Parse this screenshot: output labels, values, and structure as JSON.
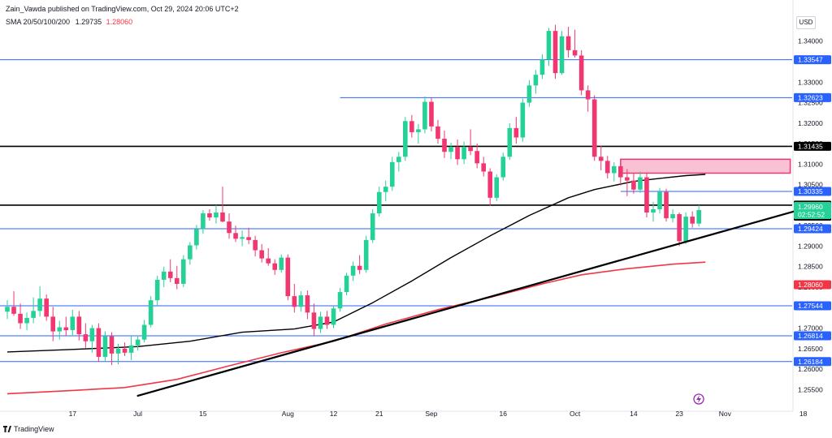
{
  "header": {
    "publisher": "Zain_Vawda published on TradingView.com, Oct 29, 2024 20:06 UTC+2",
    "indicator_label": "SMA 20/50/100/200",
    "sma100_value": "1.29735",
    "sma200_value": "1.28060"
  },
  "currency": "USD",
  "branding": "TradingView",
  "colors": {
    "up": "#26d198",
    "down": "#f23670",
    "blue_line": "#2962ff",
    "black_line": "#000000",
    "sma200": "#f23645",
    "sma100": "#000000",
    "zone_fill": "#f9c2d4",
    "zone_border": "#f23670"
  },
  "chart_data": {
    "type": "candlestick",
    "ylim": [
      1.2525,
      1.3445
    ],
    "y_ticks": [
      "1.34000",
      "1.33500",
      "1.33000",
      "1.32500",
      "1.32000",
      "1.31500",
      "1.31000",
      "1.30500",
      "1.30000",
      "1.29500",
      "1.29000",
      "1.28500",
      "1.28000",
      "1.27500",
      "1.27000",
      "1.26500",
      "1.26000",
      "1.25500"
    ],
    "x_ticks": [
      {
        "label": "17",
        "index": 10
      },
      {
        "label": "Jul",
        "index": 20
      },
      {
        "label": "15",
        "index": 30
      },
      {
        "label": "Aug",
        "index": 43
      },
      {
        "label": "12",
        "index": 50
      },
      {
        "label": "21",
        "index": 57
      },
      {
        "label": "Sep",
        "index": 65
      },
      {
        "label": "16",
        "index": 76
      },
      {
        "label": "Oct",
        "index": 87
      },
      {
        "label": "14",
        "index": 96
      },
      {
        "label": "23",
        "index": 103
      },
      {
        "label": "Nov",
        "index": 110
      },
      {
        "label": "18",
        "index": 122
      }
    ],
    "candles": [
      {
        "o": 1.274,
        "h": 1.2768,
        "l": 1.2722,
        "c": 1.2752
      },
      {
        "o": 1.2752,
        "h": 1.279,
        "l": 1.273,
        "c": 1.2735
      },
      {
        "o": 1.2735,
        "h": 1.276,
        "l": 1.2698,
        "c": 1.2712
      },
      {
        "o": 1.2712,
        "h": 1.2738,
        "l": 1.2695,
        "c": 1.2725
      },
      {
        "o": 1.2725,
        "h": 1.2775,
        "l": 1.2712,
        "c": 1.2742
      },
      {
        "o": 1.2742,
        "h": 1.2802,
        "l": 1.2728,
        "c": 1.2772
      },
      {
        "o": 1.2772,
        "h": 1.2782,
        "l": 1.2718,
        "c": 1.2728
      },
      {
        "o": 1.2728,
        "h": 1.2752,
        "l": 1.2668,
        "c": 1.2692
      },
      {
        "o": 1.2692,
        "h": 1.2718,
        "l": 1.2672,
        "c": 1.2702
      },
      {
        "o": 1.2702,
        "h": 1.2728,
        "l": 1.2682,
        "c": 1.2695
      },
      {
        "o": 1.2695,
        "h": 1.2745,
        "l": 1.268,
        "c": 1.2728
      },
      {
        "o": 1.2728,
        "h": 1.2742,
        "l": 1.267,
        "c": 1.2685
      },
      {
        "o": 1.2685,
        "h": 1.2712,
        "l": 1.2652,
        "c": 1.2668
      },
      {
        "o": 1.2668,
        "h": 1.2708,
        "l": 1.264,
        "c": 1.27
      },
      {
        "o": 1.27,
        "h": 1.2712,
        "l": 1.2618,
        "c": 1.263
      },
      {
        "o": 1.263,
        "h": 1.2692,
        "l": 1.2618,
        "c": 1.268
      },
      {
        "o": 1.268,
        "h": 1.269,
        "l": 1.261,
        "c": 1.2638
      },
      {
        "o": 1.2638,
        "h": 1.2662,
        "l": 1.2612,
        "c": 1.265
      },
      {
        "o": 1.265,
        "h": 1.2665,
        "l": 1.2632,
        "c": 1.264
      },
      {
        "o": 1.264,
        "h": 1.268,
        "l": 1.2622,
        "c": 1.2658
      },
      {
        "o": 1.2658,
        "h": 1.2682,
        "l": 1.2645,
        "c": 1.2672
      },
      {
        "o": 1.2672,
        "h": 1.272,
        "l": 1.2665,
        "c": 1.2708
      },
      {
        "o": 1.2708,
        "h": 1.2778,
        "l": 1.2702,
        "c": 1.2768
      },
      {
        "o": 1.2768,
        "h": 1.2828,
        "l": 1.2755,
        "c": 1.2818
      },
      {
        "o": 1.2818,
        "h": 1.285,
        "l": 1.28,
        "c": 1.2838
      },
      {
        "o": 1.2838,
        "h": 1.2868,
        "l": 1.2812,
        "c": 1.2822
      },
      {
        "o": 1.2822,
        "h": 1.2852,
        "l": 1.2795,
        "c": 1.2808
      },
      {
        "o": 1.2808,
        "h": 1.2878,
        "l": 1.28,
        "c": 1.2868
      },
      {
        "o": 1.2868,
        "h": 1.291,
        "l": 1.2855,
        "c": 1.2902
      },
      {
        "o": 1.2902,
        "h": 1.2952,
        "l": 1.2892,
        "c": 1.2942
      },
      {
        "o": 1.2942,
        "h": 1.2988,
        "l": 1.293,
        "c": 1.298
      },
      {
        "o": 1.298,
        "h": 1.299,
        "l": 1.2962,
        "c": 1.297
      },
      {
        "o": 1.297,
        "h": 1.3,
        "l": 1.2955,
        "c": 1.2982
      },
      {
        "o": 1.2982,
        "h": 1.3045,
        "l": 1.2958,
        "c": 1.296
      },
      {
        "o": 1.296,
        "h": 1.298,
        "l": 1.2918,
        "c": 1.2932
      },
      {
        "o": 1.2932,
        "h": 1.295,
        "l": 1.291,
        "c": 1.2918
      },
      {
        "o": 1.2918,
        "h": 1.2938,
        "l": 1.29,
        "c": 1.2922
      },
      {
        "o": 1.2922,
        "h": 1.2945,
        "l": 1.2905,
        "c": 1.2915
      },
      {
        "o": 1.2915,
        "h": 1.2925,
        "l": 1.2875,
        "c": 1.289
      },
      {
        "o": 1.289,
        "h": 1.2905,
        "l": 1.286,
        "c": 1.287
      },
      {
        "o": 1.287,
        "h": 1.2895,
        "l": 1.2852,
        "c": 1.2858
      },
      {
        "o": 1.2858,
        "h": 1.2868,
        "l": 1.283,
        "c": 1.2842
      },
      {
        "o": 1.2842,
        "h": 1.288,
        "l": 1.2835,
        "c": 1.2872
      },
      {
        "o": 1.2872,
        "h": 1.288,
        "l": 1.2768,
        "c": 1.2778
      },
      {
        "o": 1.2778,
        "h": 1.2808,
        "l": 1.2738,
        "c": 1.2752
      },
      {
        "o": 1.2752,
        "h": 1.279,
        "l": 1.274,
        "c": 1.278
      },
      {
        "o": 1.278,
        "h": 1.2792,
        "l": 1.2722,
        "c": 1.2738
      },
      {
        "o": 1.2738,
        "h": 1.276,
        "l": 1.2682,
        "c": 1.2698
      },
      {
        "o": 1.2698,
        "h": 1.274,
        "l": 1.2688,
        "c": 1.2728
      },
      {
        "o": 1.2728,
        "h": 1.2742,
        "l": 1.2698,
        "c": 1.2708
      },
      {
        "o": 1.2708,
        "h": 1.2755,
        "l": 1.27,
        "c": 1.2748
      },
      {
        "o": 1.2748,
        "h": 1.2798,
        "l": 1.274,
        "c": 1.2788
      },
      {
        "o": 1.2788,
        "h": 1.2835,
        "l": 1.278,
        "c": 1.2828
      },
      {
        "o": 1.2828,
        "h": 1.2862,
        "l": 1.2815,
        "c": 1.2852
      },
      {
        "o": 1.2852,
        "h": 1.2878,
        "l": 1.2832,
        "c": 1.2842
      },
      {
        "o": 1.2842,
        "h": 1.2925,
        "l": 1.2835,
        "c": 1.2915
      },
      {
        "o": 1.2915,
        "h": 1.299,
        "l": 1.2908,
        "c": 1.298
      },
      {
        "o": 1.298,
        "h": 1.3045,
        "l": 1.2972,
        "c": 1.3032
      },
      {
        "o": 1.3032,
        "h": 1.306,
        "l": 1.301,
        "c": 1.3045
      },
      {
        "o": 1.3045,
        "h": 1.3118,
        "l": 1.3035,
        "c": 1.3105
      },
      {
        "o": 1.3105,
        "h": 1.313,
        "l": 1.3082,
        "c": 1.3118
      },
      {
        "o": 1.3118,
        "h": 1.3215,
        "l": 1.3108,
        "c": 1.3205
      },
      {
        "o": 1.3205,
        "h": 1.322,
        "l": 1.3165,
        "c": 1.3178
      },
      {
        "o": 1.3178,
        "h": 1.3198,
        "l": 1.315,
        "c": 1.3185
      },
      {
        "o": 1.3185,
        "h": 1.3265,
        "l": 1.3175,
        "c": 1.3252
      },
      {
        "o": 1.3252,
        "h": 1.3262,
        "l": 1.318,
        "c": 1.3192
      },
      {
        "o": 1.3192,
        "h": 1.3208,
        "l": 1.315,
        "c": 1.3162
      },
      {
        "o": 1.3162,
        "h": 1.3182,
        "l": 1.3115,
        "c": 1.313
      },
      {
        "o": 1.313,
        "h": 1.3152,
        "l": 1.3112,
        "c": 1.3142
      },
      {
        "o": 1.3142,
        "h": 1.316,
        "l": 1.3098,
        "c": 1.3112
      },
      {
        "o": 1.3112,
        "h": 1.3155,
        "l": 1.31,
        "c": 1.3142
      },
      {
        "o": 1.3142,
        "h": 1.3185,
        "l": 1.3122,
        "c": 1.3132
      },
      {
        "o": 1.3132,
        "h": 1.315,
        "l": 1.309,
        "c": 1.3102
      },
      {
        "o": 1.3102,
        "h": 1.3118,
        "l": 1.307,
        "c": 1.3082
      },
      {
        "o": 1.3082,
        "h": 1.309,
        "l": 1.2998,
        "c": 1.3018
      },
      {
        "o": 1.3018,
        "h": 1.3075,
        "l": 1.301,
        "c": 1.3068
      },
      {
        "o": 1.3068,
        "h": 1.3128,
        "l": 1.306,
        "c": 1.3118
      },
      {
        "o": 1.3118,
        "h": 1.32,
        "l": 1.311,
        "c": 1.3188
      },
      {
        "o": 1.3188,
        "h": 1.3215,
        "l": 1.315,
        "c": 1.3165
      },
      {
        "o": 1.3165,
        "h": 1.326,
        "l": 1.3155,
        "c": 1.325
      },
      {
        "o": 1.325,
        "h": 1.3305,
        "l": 1.324,
        "c": 1.3292
      },
      {
        "o": 1.3292,
        "h": 1.333,
        "l": 1.3272,
        "c": 1.3318
      },
      {
        "o": 1.3318,
        "h": 1.3368,
        "l": 1.3308,
        "c": 1.3355
      },
      {
        "o": 1.3355,
        "h": 1.3432,
        "l": 1.334,
        "c": 1.3425
      },
      {
        "o": 1.3425,
        "h": 1.344,
        "l": 1.3308,
        "c": 1.3322
      },
      {
        "o": 1.3322,
        "h": 1.3425,
        "l": 1.3318,
        "c": 1.3412
      },
      {
        "o": 1.3412,
        "h": 1.3435,
        "l": 1.336,
        "c": 1.3378
      },
      {
        "o": 1.3378,
        "h": 1.3428,
        "l": 1.336,
        "c": 1.3365
      },
      {
        "o": 1.3365,
        "h": 1.3378,
        "l": 1.3268,
        "c": 1.328
      },
      {
        "o": 1.328,
        "h": 1.3292,
        "l": 1.3228,
        "c": 1.3258
      },
      {
        "o": 1.3258,
        "h": 1.3268,
        "l": 1.3108,
        "c": 1.3118
      },
      {
        "o": 1.3118,
        "h": 1.3145,
        "l": 1.3085,
        "c": 1.3108
      },
      {
        "o": 1.3108,
        "h": 1.312,
        "l": 1.3065,
        "c": 1.3078
      },
      {
        "o": 1.3078,
        "h": 1.3105,
        "l": 1.3058,
        "c": 1.3095
      },
      {
        "o": 1.3095,
        "h": 1.3102,
        "l": 1.3048,
        "c": 1.3068
      },
      {
        "o": 1.3068,
        "h": 1.3088,
        "l": 1.3022,
        "c": 1.306
      },
      {
        "o": 1.306,
        "h": 1.3078,
        "l": 1.3028,
        "c": 1.3038
      },
      {
        "o": 1.3038,
        "h": 1.3082,
        "l": 1.303,
        "c": 1.3068
      },
      {
        "o": 1.3068,
        "h": 1.3078,
        "l": 1.297,
        "c": 1.2982
      },
      {
        "o": 1.2982,
        "h": 1.3008,
        "l": 1.296,
        "c": 1.299
      },
      {
        "o": 1.299,
        "h": 1.3042,
        "l": 1.298,
        "c": 1.3032
      },
      {
        "o": 1.3032,
        "h": 1.304,
        "l": 1.296,
        "c": 1.2968
      },
      {
        "o": 1.2968,
        "h": 1.299,
        "l": 1.2958,
        "c": 1.2978
      },
      {
        "o": 1.2978,
        "h": 1.2982,
        "l": 1.29,
        "c": 1.2912
      },
      {
        "o": 1.2912,
        "h": 1.2982,
        "l": 1.2905,
        "c": 1.2972
      },
      {
        "o": 1.2972,
        "h": 1.2985,
        "l": 1.2945,
        "c": 1.2955
      },
      {
        "o": 1.2955,
        "h": 1.3,
        "l": 1.2948,
        "c": 1.2988
      }
    ],
    "sma100": [
      [
        0,
        1.2642
      ],
      [
        10,
        1.2648
      ],
      [
        20,
        1.2655
      ],
      [
        28,
        1.2668
      ],
      [
        36,
        1.269
      ],
      [
        44,
        1.2698
      ],
      [
        50,
        1.2715
      ],
      [
        56,
        1.2762
      ],
      [
        62,
        1.2815
      ],
      [
        68,
        1.2872
      ],
      [
        74,
        1.2925
      ],
      [
        80,
        1.2975
      ],
      [
        86,
        1.3018
      ],
      [
        90,
        1.3038
      ],
      [
        96,
        1.3058
      ],
      [
        101,
        1.3067
      ],
      [
        104,
        1.3072
      ],
      [
        107,
        1.3075
      ]
    ],
    "sma200": [
      [
        0,
        1.254
      ],
      [
        10,
        1.2548
      ],
      [
        18,
        1.2555
      ],
      [
        26,
        1.2575
      ],
      [
        34,
        1.2608
      ],
      [
        42,
        1.264
      ],
      [
        50,
        1.2668
      ],
      [
        58,
        1.271
      ],
      [
        66,
        1.2745
      ],
      [
        74,
        1.2775
      ],
      [
        82,
        1.2808
      ],
      [
        88,
        1.283
      ],
      [
        95,
        1.2845
      ],
      [
        102,
        1.2856
      ],
      [
        107,
        1.2861
      ]
    ],
    "levels": [
      {
        "name": "level-1-33547",
        "price": 1.33547,
        "label": "1.33547",
        "color": "#2962ff",
        "width": 1,
        "from": 0
      },
      {
        "name": "level-1-32623",
        "price": 1.32623,
        "label": "1.32623",
        "color": "#2962ff",
        "width": 1,
        "from": 51
      },
      {
        "name": "level-1-31435",
        "price": 1.31435,
        "label": "1.31435",
        "color": "#000000",
        "width": 1.6,
        "from": 0
      },
      {
        "name": "level-1-30335",
        "price": 1.30335,
        "label": "1.30335",
        "color": "#2962ff",
        "width": 1,
        "from": 94
      },
      {
        "name": "level-1-30000",
        "price": 1.3,
        "label": "1.30000",
        "color": "#000000",
        "width": 1.6,
        "from": 0
      },
      {
        "name": "level-1-29424",
        "price": 1.29424,
        "label": "1.29424",
        "color": "#2962ff",
        "width": 1,
        "from": 0
      },
      {
        "name": "level-1-27544",
        "price": 1.27544,
        "label": "1.27544",
        "color": "#2962ff",
        "width": 1,
        "from": 0
      },
      {
        "name": "level-1-26814",
        "price": 1.26814,
        "label": "1.26814",
        "color": "#2962ff",
        "width": 1,
        "from": 0
      },
      {
        "name": "level-1-26184",
        "price": 1.26184,
        "label": "1.26184",
        "color": "#2962ff",
        "width": 1,
        "from": 0
      }
    ],
    "trendline": {
      "p1": [
        20,
        1.2535
      ],
      "p2": [
        124,
        1.3
      ]
    },
    "zone": {
      "from": 94,
      "to": 120,
      "top": 1.3112,
      "bottom": 1.3078
    },
    "price_badges": [
      {
        "name": "badge-sma200",
        "label": "1.28060",
        "price": 1.2806,
        "bg": "#f23645",
        "fg": "#ffffff"
      },
      {
        "name": "badge-sma100",
        "label": "1.29735",
        "price": 1.29735,
        "bg": "#000000",
        "fg": "#ffffff"
      }
    ],
    "current_price": {
      "label": "1.29960",
      "countdown": "02:52:52",
      "price": 1.2996,
      "bg": "#26d198",
      "fg": "#ffffff"
    }
  }
}
